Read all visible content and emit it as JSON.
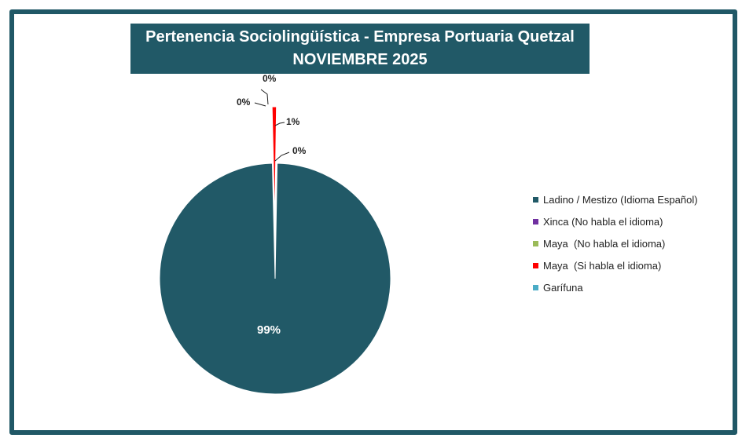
{
  "chart_data": {
    "type": "pie",
    "title": "Pertenencia Sociolingüística - Empresa Portuaria Quetzal",
    "subtitle": "NOVIEMBRE 2025",
    "series": [
      {
        "name": "Ladino / Mestizo (Idioma Español)",
        "value": 99,
        "label": "99%",
        "color": "#215967"
      },
      {
        "name": "Xinca (No habla el idioma)",
        "value": 0,
        "label": "0%",
        "color": "#7030A0"
      },
      {
        "name": "Maya  (No habla el idioma)",
        "value": 0,
        "label": "0%",
        "color": "#9BBB59"
      },
      {
        "name": "Maya  (Si habla el idioma)",
        "value": 1,
        "label": "1%",
        "color": "#FF0000"
      },
      {
        "name": "Garífuna",
        "value": 0,
        "label": "0%",
        "color": "#4BACC6"
      }
    ],
    "legend_position": "right"
  }
}
